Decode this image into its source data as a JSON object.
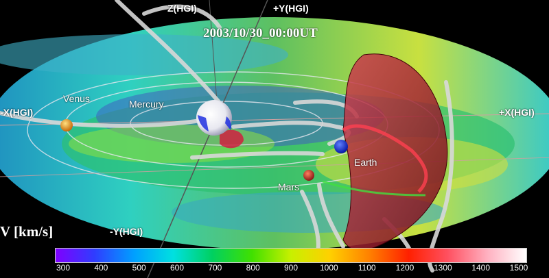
{
  "timestamp": "2003/10/30_00:00UT",
  "axes": {
    "z": "Z(HGI)",
    "plus_y": "+Y(HGI)",
    "minus_x": "-X(HGI)",
    "plus_x": "+X(HGI)",
    "minus_y": "-Y(HGI)"
  },
  "planets": {
    "venus": "Venus",
    "mercury": "Mercury",
    "earth": "Earth",
    "mars": "Mars"
  },
  "colorbar": {
    "label": "V [km/s]",
    "ticks": [
      "300",
      "400",
      "500",
      "600",
      "700",
      "800",
      "900",
      "1000",
      "1100",
      "1200",
      "1300",
      "1400",
      "1500"
    ],
    "colors": [
      "#7f00ff",
      "#2f3dff",
      "#00a0ff",
      "#00e0e0",
      "#00d060",
      "#40e000",
      "#c8f000",
      "#ffd000",
      "#ff8000",
      "#ff2000",
      "#ff5060",
      "#ffb0c0",
      "#ffffff"
    ]
  }
}
